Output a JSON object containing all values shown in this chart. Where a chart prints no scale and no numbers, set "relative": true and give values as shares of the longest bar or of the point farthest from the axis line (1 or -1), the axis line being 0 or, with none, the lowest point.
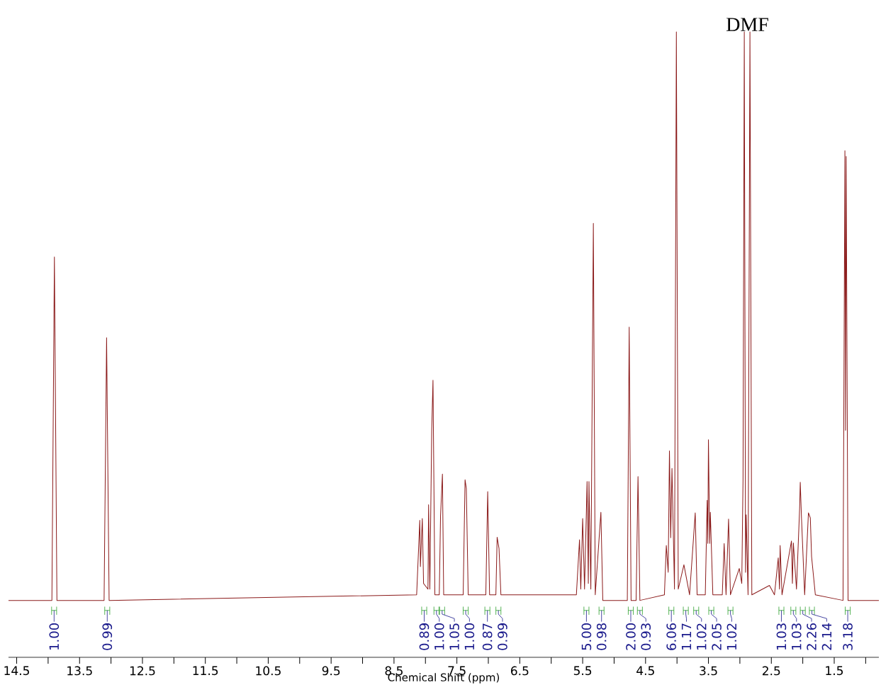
{
  "chart_data": {
    "type": "line",
    "relative": true,
    "xlabel": "Chemical Shift (ppm)",
    "marker": "none",
    "color": "#8b1a1a",
    "xlim": [
      14.63,
      0.79
    ],
    "xticks": [
      14.5,
      {
        "value": 14,
        "label": null
      },
      13.5,
      {
        "value": 13,
        "label": null
      },
      12.5,
      {
        "value": 12,
        "label": null
      },
      11.5,
      {
        "value": 11,
        "label": null
      },
      10.5,
      {
        "value": 10,
        "label": null
      },
      9.5,
      {
        "value": 9,
        "label": null
      },
      8.5,
      {
        "value": 8,
        "label": null
      },
      7.5,
      {
        "value": 7,
        "label": null
      },
      6.5,
      {
        "value": 6,
        "label": null
      },
      5.5,
      {
        "value": 5,
        "label": null
      },
      4.5,
      {
        "value": 4,
        "label": null
      },
      3.5,
      {
        "value": 3,
        "label": null
      },
      2.5,
      {
        "value": 2,
        "label": null
      },
      1.5,
      {
        "value": 1,
        "label": null
      }
    ],
    "x": [
      14.63,
      13.94,
      13.9,
      13.86,
      13.11,
      13.07,
      13.03,
      8.14,
      8.09,
      8.08,
      8.05,
      8.03,
      7.96,
      7.95,
      7.93,
      7.9,
      7.88,
      7.85,
      7.78,
      7.76,
      7.73,
      7.71,
      7.4,
      7.37,
      7.35,
      7.32,
      7.04,
      7.01,
      6.98,
      6.88,
      6.86,
      6.83,
      6.8,
      5.6,
      5.55,
      5.53,
      5.5,
      5.47,
      5.43,
      5.41,
      5.4,
      5.37,
      5.33,
      5.3,
      5.21,
      5.18,
      4.79,
      4.76,
      4.73,
      4.65,
      4.62,
      4.59,
      4.2,
      4.17,
      4.14,
      4.12,
      4.1,
      4.08,
      4.04,
      4.01,
      3.98,
      3.89,
      3.8,
      3.71,
      3.68,
      3.55,
      3.52,
      3.51,
      3.5,
      3.48,
      3.47,
      3.43,
      3.28,
      3.25,
      3.22,
      3.18,
      3.15,
      3.01,
      2.97,
      2.95,
      2.93,
      2.91,
      2.9,
      2.87,
      2.84,
      2.81,
      2.53,
      2.45,
      2.39,
      2.37,
      2.36,
      2.33,
      2.18,
      2.165,
      2.15,
      2.1,
      2.05,
      2.04,
      2.02,
      1.97,
      1.91,
      1.88,
      1.86,
      1.8,
      1.36,
      1.33,
      1.32,
      1.31,
      1.28,
      0.79
    ],
    "values": [
      0.091,
      0.091,
      0.64,
      0.091,
      0.091,
      0.511,
      0.091,
      0.1,
      0.219,
      0.145,
      0.222,
      0.118,
      0.109,
      0.244,
      0.109,
      0.364,
      0.443,
      0.1,
      0.1,
      0.226,
      0.293,
      0.1,
      0.1,
      0.284,
      0.27,
      0.1,
      0.1,
      0.265,
      0.1,
      0.1,
      0.192,
      0.174,
      0.1,
      0.1,
      0.188,
      0.109,
      0.222,
      0.109,
      0.281,
      0.118,
      0.281,
      0.109,
      0.694,
      0.1,
      0.232,
      0.091,
      0.091,
      0.528,
      0.091,
      0.091,
      0.289,
      0.091,
      0.1,
      0.179,
      0.136,
      0.33,
      0.191,
      0.302,
      0.109,
      1,
      0.109,
      0.148,
      0.1,
      0.231,
      0.1,
      0.1,
      0.251,
      0.182,
      0.348,
      0.182,
      0.232,
      0.1,
      0.1,
      0.182,
      0.1,
      0.221,
      0.1,
      0.142,
      0.118,
      0.284,
      1,
      0.136,
      0.228,
      0.1,
      1,
      0.1,
      0.115,
      0.1,
      0.159,
      0.109,
      0.179,
      0.1,
      0.186,
      0.118,
      0.183,
      0.109,
      0.238,
      0.28,
      0.222,
      0.1,
      0.231,
      0.223,
      0.161,
      0.1,
      0.091,
      0.81,
      0.363,
      0.801,
      0.091,
      0.091
    ],
    "annotations": [
      {
        "text": "DMF",
        "x": 2.88,
        "y": 1
      },
      {
        "text": "1.00",
        "x": 13.905
      },
      {
        "text": "0.99",
        "x": 13.06
      },
      {
        "text": "0.89",
        "x": 8.02
      },
      {
        "text": "1.00",
        "x": 7.825
      },
      {
        "text": "1.05",
        "x": 7.735
      },
      {
        "text": "1.00",
        "x": 7.36
      },
      {
        "text": "0.87",
        "x": 7.015
      },
      {
        "text": "0.99",
        "x": 6.84
      },
      {
        "text": "5.00",
        "x": 5.44
      },
      {
        "text": "0.98",
        "x": 5.2
      },
      {
        "text": "2.00",
        "x": 4.735
      },
      {
        "text": "0.93",
        "x": 4.59
      },
      {
        "text": "6.06",
        "x": 4.09
      },
      {
        "text": "1.17",
        "x": 3.86
      },
      {
        "text": "1.02",
        "x": 3.695
      },
      {
        "text": "2.05",
        "x": 3.455
      },
      {
        "text": "1.02",
        "x": 3.15
      },
      {
        "text": "1.03",
        "x": 2.34
      },
      {
        "text": "1.03",
        "x": 2.15
      },
      {
        "text": "2.26",
        "x": 2.0
      },
      {
        "text": "2.14",
        "x": 1.855
      },
      {
        "text": "3.18",
        "x": 1.285
      }
    ]
  }
}
